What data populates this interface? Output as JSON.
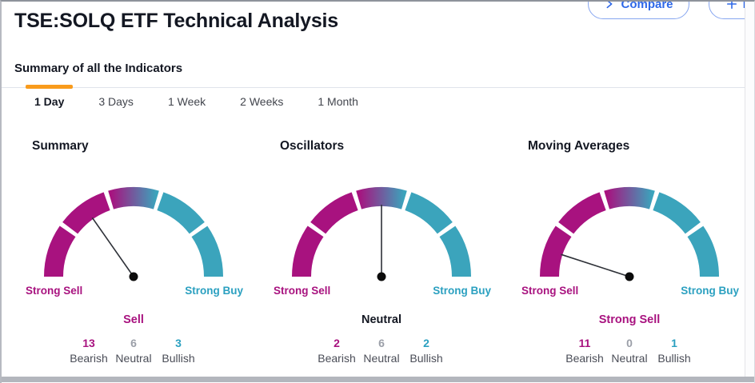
{
  "page_title": "TSE:SOLQ ETF Technical Analysis",
  "section_heading": "Summary of all the Indicators",
  "actions": {
    "compare_label": "Compare",
    "follow_label": "Follow"
  },
  "tabs": {
    "items": [
      {
        "label": "1 Day",
        "active": true
      },
      {
        "label": "3 Days",
        "active": false
      },
      {
        "label": "1 Week",
        "active": false
      },
      {
        "label": "2 Weeks",
        "active": false
      },
      {
        "label": "1 Month",
        "active": false
      }
    ]
  },
  "colors": {
    "sell_text": "#A8127F",
    "buy_text": "#2BA0C0",
    "arc_sell": "#A8127F",
    "arc_buy": "#3BA4BC",
    "neutral_num": "#9B9FA8",
    "count_label": "#4A4D57",
    "dark_text": "#131722",
    "tab_text": "#42454D",
    "accent_orange": "#F99B1C",
    "button_blue": "#2E68E8",
    "needle": "#2E3138",
    "divider": "#E0E3EB"
  },
  "chart_data": {
    "type": "gauge",
    "title": "Summary of all the Indicators",
    "scale_segments": [
      "Strong Sell",
      "Sell",
      "Neutral",
      "Buy",
      "Strong Buy"
    ],
    "min_label": "Strong Sell",
    "max_label": "Strong Buy",
    "count_labels": [
      "Bearish",
      "Neutral",
      "Bullish"
    ],
    "gauges": [
      {
        "title": "Summary",
        "verdict": "Sell",
        "verdict_color": "#A8127F",
        "needle_angle_deg": 125,
        "counts": {
          "bearish": 13,
          "neutral": 6,
          "bullish": 3
        }
      },
      {
        "title": "Oscillators",
        "verdict": "Neutral",
        "verdict_color": "#131722",
        "needle_angle_deg": 90,
        "counts": {
          "bearish": 2,
          "neutral": 6,
          "bullish": 2
        }
      },
      {
        "title": "Moving Averages",
        "verdict": "Strong Sell",
        "verdict_color": "#A8127F",
        "needle_angle_deg": 162,
        "counts": {
          "bearish": 11,
          "neutral": 0,
          "bullish": 1
        }
      }
    ]
  }
}
